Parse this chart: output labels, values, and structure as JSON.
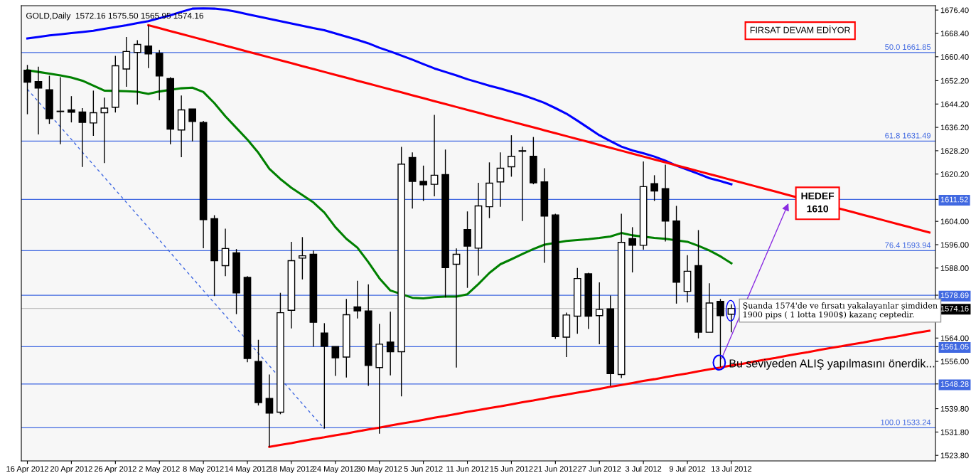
{
  "chart_data": {
    "type": "candlestick",
    "title": "GOLD,Daily  1572.16 1575.50 1565.95 1574.16",
    "categories": [
      "16 Apr 2012",
      null,
      null,
      null,
      "20 Apr 2012",
      null,
      null,
      null,
      "26 Apr 2012",
      null,
      null,
      null,
      "2 May 2012",
      null,
      null,
      null,
      "8 May 2012",
      null,
      null,
      null,
      "14 May 2012",
      null,
      null,
      null,
      "18 May 2012",
      null,
      null,
      null,
      "24 May 2012",
      null,
      null,
      null,
      "30 May 2012",
      null,
      null,
      null,
      "5 Jun 2012",
      null,
      null,
      null,
      "11 Jun 2012",
      null,
      null,
      null,
      "15 Jun 2012",
      null,
      null,
      null,
      "21 Jun 2012",
      null,
      null,
      null,
      "27 Jun 2012",
      null,
      null,
      null,
      "3 Jul 2012",
      null,
      null,
      null,
      "9 Jul 2012",
      null,
      null,
      null,
      "13 Jul 2012",
      null,
      null,
      null,
      null,
      null,
      null,
      null,
      null,
      null,
      null,
      null,
      null,
      null,
      null,
      null,
      null,
      null,
      null
    ],
    "ohlc": [
      [
        1655.8,
        1657.6,
        1640.7,
        1651.7
      ],
      [
        1651.9,
        1657.0,
        1633.8,
        1649.7
      ],
      [
        1649.1,
        1653.9,
        1637.4,
        1639.2
      ],
      [
        1641.6,
        1653.4,
        1630.4,
        1641.6
      ],
      [
        1642.2,
        1646.9,
        1637.9,
        1641.4
      ],
      [
        1641.5,
        1642.8,
        1622.6,
        1637.9
      ],
      [
        1637.7,
        1648.8,
        1633.3,
        1641.2
      ],
      [
        1641.2,
        1646.4,
        1624.0,
        1642.8
      ],
      [
        1643.1,
        1660.7,
        1641.3,
        1657.3
      ],
      [
        1656.2,
        1667.2,
        1650.1,
        1662.2
      ],
      [
        1661.9,
        1666.1,
        1644.0,
        1664.6
      ],
      [
        1664.1,
        1671.2,
        1656.5,
        1661.4
      ],
      [
        1661.6,
        1662.7,
        1645.5,
        1653.8
      ],
      [
        1652.9,
        1653.4,
        1630.4,
        1635.6
      ],
      [
        1635.3,
        1647.1,
        1626.0,
        1642.2
      ],
      [
        1642.5,
        1642.5,
        1631.4,
        1638.2
      ],
      [
        1637.9,
        1638.4,
        1594.8,
        1604.6
      ],
      [
        1604.9,
        1606.1,
        1578.4,
        1590.5
      ],
      [
        1588.8,
        1601.5,
        1585.2,
        1594.7
      ],
      [
        1593.2,
        1594.5,
        1572.2,
        1579.5
      ],
      [
        1584.8,
        1585.2,
        1555.7,
        1557.0
      ],
      [
        1556.0,
        1563.4,
        1540.9,
        1541.9
      ],
      [
        1543.3,
        1551.5,
        1526.7,
        1538.3
      ],
      [
        1538.6,
        1579.5,
        1537.9,
        1572.7
      ],
      [
        1573.5,
        1597.0,
        1567.3,
        1590.5
      ],
      [
        1591.4,
        1598.6,
        1584.1,
        1592.2
      ],
      [
        1592.7,
        1594.0,
        1561.1,
        1569.4
      ],
      [
        1565.7,
        1569.1,
        1533.0,
        1561.2
      ],
      [
        1561.1,
        1561.1,
        1551.0,
        1557.2
      ],
      [
        1557.5,
        1577.4,
        1550.5,
        1572.0
      ],
      [
        1574.7,
        1583.6,
        1570.7,
        1573.3
      ],
      [
        1573.3,
        1582.4,
        1547.6,
        1554.6
      ],
      [
        1553.9,
        1568.9,
        1531.2,
        1561.9
      ],
      [
        1562.6,
        1573.0,
        1551.2,
        1559.3
      ],
      [
        1559.3,
        1629.5,
        1544.0,
        1623.6
      ],
      [
        1625.9,
        1627.6,
        1608.4,
        1617.7
      ],
      [
        1617.7,
        1623.1,
        1611.0,
        1616.5
      ],
      [
        1616.7,
        1640.5,
        1612.6,
        1619.8
      ],
      [
        1620.0,
        1628.6,
        1577.9,
        1588.1
      ],
      [
        1589.3,
        1594.7,
        1553.9,
        1592.7
      ],
      [
        1601.2,
        1607.4,
        1581.2,
        1595.5
      ],
      [
        1594.8,
        1617.2,
        1585.4,
        1609.3
      ],
      [
        1609.0,
        1624.2,
        1605.1,
        1617.1
      ],
      [
        1617.5,
        1627.6,
        1609.0,
        1622.2
      ],
      [
        1622.7,
        1633.5,
        1619.3,
        1626.3
      ],
      [
        1628.2,
        1629.6,
        1604.1,
        1628.0
      ],
      [
        1626.3,
        1632.9,
        1616.7,
        1617.2
      ],
      [
        1617.5,
        1622.2,
        1589.8,
        1605.8
      ],
      [
        1606.2,
        1606.6,
        1563.7,
        1564.5
      ],
      [
        1564.3,
        1572.7,
        1557.5,
        1571.9
      ],
      [
        1571.5,
        1588.0,
        1565.5,
        1584.4
      ],
      [
        1586.0,
        1586.4,
        1567.1,
        1571.5
      ],
      [
        1571.7,
        1583.1,
        1561.9,
        1573.8
      ],
      [
        1574.0,
        1578.6,
        1547.6,
        1551.8
      ],
      [
        1551.5,
        1606.6,
        1550.3,
        1596.8
      ],
      [
        1598.1,
        1602.0,
        1586.5,
        1595.8
      ],
      [
        1595.8,
        1624.5,
        1594.3,
        1615.9
      ],
      [
        1616.9,
        1619.8,
        1611.0,
        1614.4
      ],
      [
        1615.2,
        1623.4,
        1597.1,
        1604.1
      ],
      [
        1604.1,
        1609.3,
        1575.8,
        1583.1
      ],
      [
        1580.0,
        1592.4,
        1576.2,
        1586.9
      ],
      [
        1588.8,
        1601.0,
        1563.9,
        1566.0
      ],
      [
        1566.0,
        1582.8,
        1566.0,
        1576.0
      ],
      [
        1576.6,
        1577.4,
        1554.1,
        1571.7
      ],
      [
        1572.16,
        1575.5,
        1565.95,
        1574.16
      ],
      null,
      null,
      null,
      null,
      null,
      null,
      null,
      null,
      null,
      null,
      null,
      null,
      null,
      null,
      null,
      null,
      null,
      null
    ],
    "series": [
      {
        "type": "line",
        "color": "#0000ff",
        "values": [
          1666.7,
          1667.2,
          1667.7,
          1668.1,
          1668.5,
          1668.9,
          1669.3,
          1670.0,
          1670.6,
          1671.2,
          1671.9,
          1672.6,
          1673.6,
          1674.6,
          1675.8,
          1676.9,
          1677.0,
          1676.9,
          1676.5,
          1675.8,
          1675.0,
          1674.2,
          1673.4,
          1672.6,
          1671.8,
          1671.0,
          1670.2,
          1669.5,
          1668.4,
          1667.3,
          1666.2,
          1665.0,
          1663.5,
          1662.2,
          1660.8,
          1659.4,
          1657.9,
          1656.4,
          1655.2,
          1654.0,
          1652.7,
          1651.6,
          1650.5,
          1649.5,
          1648.4,
          1647.3,
          1646.0,
          1644.6,
          1642.8,
          1640.9,
          1638.5,
          1636.0,
          1633.5,
          1631.5,
          1629.6,
          1628.3,
          1627.3,
          1626.2,
          1624.8,
          1623.1,
          1621.7,
          1620.3,
          1618.8,
          1617.8,
          1616.7,
          null,
          null,
          null,
          null,
          null,
          null,
          null,
          null,
          null,
          null,
          null,
          null,
          null,
          null,
          null,
          null,
          null,
          null
        ]
      },
      {
        "type": "line",
        "color": "#008000",
        "values": [
          1655.8,
          1655.2,
          1654.6,
          1654.0,
          1653.3,
          1652.2,
          1650.5,
          1648.8,
          null,
          1648.6,
          1648.4,
          1647.7,
          1648.5,
          null,
          1649.6,
          1649.8,
          1648.3,
          1644.5,
          1640.0,
          1636.0,
          1632.0,
          1627.5,
          1622.0,
          1618.5,
          1615.5,
          1613.0,
          1610.5,
          1607.0,
          1602.0,
          1598.0,
          1595.0,
          1590.0,
          1584.5,
          1580.3,
          null,
          1577.8,
          1577.6,
          1578.0,
          1578.2,
          1578.2,
          1579.0,
          1582.5,
          1586.3,
          1589.3,
          1591.0,
          1592.8,
          1594.5,
          1596.0,
          null,
          1597.3,
          1597.6,
          1597.9,
          1598.3,
          1598.8,
          1600.0,
          1599.2,
          null,
          1598.3,
          1598.0,
          null,
          1597.0,
          1595.6,
          1594.0,
          1592.0,
          1589.6,
          null,
          null,
          null,
          null,
          null,
          null,
          null,
          null,
          null,
          null,
          null,
          null,
          null,
          null,
          null,
          null,
          null,
          null
        ]
      },
      {
        "type": "line",
        "color": "#ff0000",
        "values": [
          null,
          null,
          null,
          null,
          null,
          null,
          null,
          null,
          null,
          null,
          null,
          1671.2,
          1670.2,
          1669.2,
          1668.2,
          1667.2,
          1666.2,
          1665.2,
          1664.2,
          1663.2,
          1662.2,
          1661.2,
          1660.2,
          1659.2,
          1658.2,
          1657.2,
          1656.2,
          1655.2,
          1654.2,
          1653.2,
          1652.2,
          1651.2,
          1650.2,
          1649.2,
          1648.2,
          1647.2,
          1646.2,
          1645.2,
          1644.2,
          1643.2,
          1642.2,
          1641.2,
          1640.2,
          1639.2,
          1638.2,
          1637.2,
          1636.2,
          1635.2,
          1634.2,
          1633.2,
          1632.2,
          1631.2,
          1630.2,
          1629.2,
          1628.2,
          1627.2,
          1626.2,
          1625.2,
          1624.2,
          1623.2,
          1622.2,
          1621.2,
          1620.2,
          1619.2,
          1618.2,
          1617.2,
          1616.2,
          1615.2,
          1614.2,
          1613.2,
          null,
          null,
          null,
          null,
          1608.2,
          1607.2,
          1606.2,
          1605.2,
          1604.2,
          1603.2,
          1602.2,
          1601.2,
          1600.2
        ]
      },
      {
        "type": "line",
        "color": "#ff0000",
        "values": [
          null,
          null,
          null,
          null,
          null,
          null,
          null,
          null,
          null,
          null,
          null,
          null,
          null,
          null,
          null,
          null,
          null,
          null,
          null,
          null,
          null,
          null,
          1526.7,
          1527.4,
          1528.0,
          1528.7,
          1529.4,
          1530.0,
          1530.7,
          1531.3,
          1532.0,
          1532.7,
          1533.3,
          1534.0,
          1534.7,
          1535.3,
          1536.0,
          1536.7,
          1537.3,
          1538.0,
          1538.7,
          1539.3,
          1540.0,
          1540.6,
          1541.3,
          1542.0,
          1542.6,
          1543.3,
          1544.0,
          1544.6,
          1545.3,
          1545.9,
          1546.6,
          1547.3,
          1547.9,
          1548.6,
          1549.3,
          1549.9,
          1550.6,
          1551.3,
          1551.9,
          1552.6,
          1553.3,
          1553.9,
          1554.6,
          1555.2,
          1555.9,
          1556.6,
          1557.2,
          1557.9,
          1558.6,
          1559.2,
          1559.9,
          1560.6,
          1561.2,
          1561.9,
          1562.5,
          1563.2,
          1563.9,
          1564.5,
          1565.2,
          1565.9,
          1566.5
        ]
      },
      {
        "type": "line",
        "color": "#4169e1",
        "line_style": "dashed",
        "values": [
          1649.3,
          1645.0,
          null,
          1636.4,
          1632.1,
          1627.7,
          1623.4,
          1619.1,
          1614.8,
          1610.5,
          1606.2,
          1601.9,
          1597.6,
          1593.3,
          1588.9,
          1584.6,
          1580.3,
          1576.0,
          1571.7,
          1567.4,
          null,
          1558.8,
          1554.5,
          null,
          1545.8,
          1541.5,
          1537.2,
          1532.9,
          null,
          null,
          null,
          null,
          null,
          null,
          null,
          null,
          null,
          null,
          null,
          null,
          null,
          null,
          null,
          null,
          null,
          null,
          null,
          null,
          null,
          null,
          null,
          null,
          null,
          null,
          null,
          null,
          null,
          null,
          null,
          null,
          null,
          null,
          null,
          null,
          null,
          null,
          null,
          null,
          null,
          null,
          null,
          null,
          null,
          null,
          null,
          null,
          null,
          null,
          null,
          null,
          null,
          null,
          null
        ]
      }
    ],
    "ylim": [
      1521.9,
      1677.9
    ],
    "yticks": [
      {
        "value": 1676.4,
        "label": "1676.40"
      },
      {
        "value": 1668.4,
        "label": "1668.40"
      },
      {
        "value": 1660.4,
        "label": "1660.40"
      },
      {
        "value": 1652.2,
        "label": "1652.20"
      },
      {
        "value": 1644.2,
        "label": "1644.20"
      },
      {
        "value": 1636.2,
        "label": "1636.20"
      },
      {
        "value": 1628.2,
        "label": "1628.20"
      },
      {
        "value": 1620.2,
        "label": "1620.20"
      },
      {
        "value": 1611.52,
        "label": "1611.52"
      },
      {
        "value": 1604,
        "label": "1604.00"
      },
      {
        "value": 1596,
        "label": "1596.00"
      },
      {
        "value": 1588,
        "label": "1588.00"
      },
      {
        "value": 1578.69,
        "label": "1578.69"
      },
      {
        "value": 1574.16,
        "label": "1574.16"
      },
      {
        "value": 1564,
        "label": "1564.00"
      },
      {
        "value": 1561.05,
        "label": "1561.05"
      },
      {
        "value": 1556,
        "label": "1556.00"
      },
      {
        "value": 1548.28,
        "label": "1548.28"
      },
      {
        "value": 1539.8,
        "label": "1539.80"
      },
      {
        "value": 1531.8,
        "label": "1531.80"
      },
      {
        "value": 1523.8,
        "label": "1523.80"
      }
    ],
    "ref_lines": [
      {
        "axis": "y",
        "value": 1661.85,
        "label": "50.0 1661.85",
        "color": "#4169e1"
      },
      {
        "axis": "y",
        "value": 1631.49,
        "label": "61.8 1631.49",
        "color": "#4169e1"
      },
      {
        "axis": "y",
        "value": 1593.94,
        "label": "76.4 1593.94",
        "color": "#4169e1"
      },
      {
        "axis": "y",
        "value": 1533.24,
        "label": "100.0 1533.24",
        "color": "#4169e1"
      },
      {
        "axis": "y",
        "value": 1611.52,
        "color": "#4169e1"
      },
      {
        "axis": "y",
        "value": 1578.69,
        "color": "#4169e1"
      },
      {
        "axis": "y",
        "value": 1561.05,
        "color": "#4169e1"
      },
      {
        "axis": "y",
        "value": 1548.28,
        "color": "#4169e1"
      },
      {
        "axis": "y",
        "value": 1574.16,
        "color": "#c0c0c0"
      }
    ],
    "annotations": [
      "FIRSAT DEVAM EDİYOR",
      "HEDEF\n1610",
      "Şuanda 1574'de ve fırsatı yakalayanlar şimdiden\n1900 pips ( 1 lotta 1900$) kazanç ceptedir.",
      "Bu seviyeden ALIŞ yapılmasını önerdik..."
    ],
    "grid": false,
    "legend": false
  }
}
